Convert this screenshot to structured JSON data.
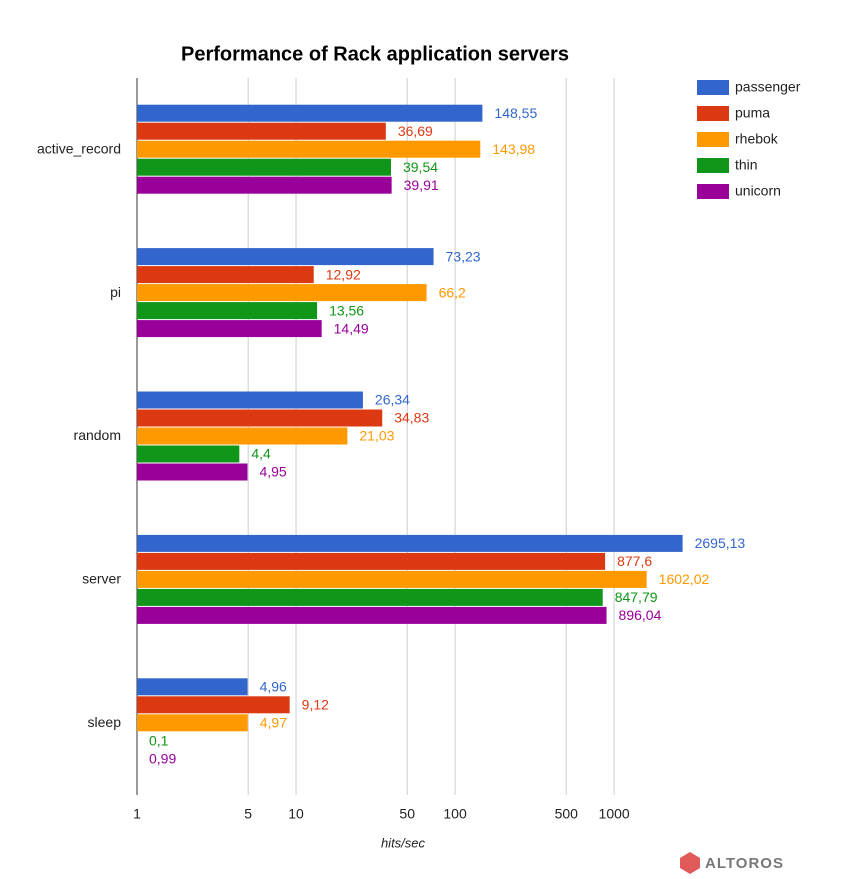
{
  "chart_data": {
    "type": "bar",
    "orientation": "horizontal",
    "title": "Performance of Rack application servers",
    "x_label": "hits/sec",
    "watermark": "ALTOROS",
    "categories": [
      "active_record",
      "pi",
      "random",
      "server",
      "sleep"
    ],
    "xscale": "log",
    "xlim": [
      1,
      3000
    ],
    "xticks": [
      1,
      5,
      10,
      50,
      100,
      500,
      1000
    ],
    "grid": true,
    "legend": "right",
    "series": [
      {
        "name": "passenger",
        "color": "#3366cc",
        "values": [
          148.55,
          73.23,
          26.34,
          2695.13,
          4.96
        ],
        "value_labels": [
          "148,55",
          "73,23",
          "26,34",
          "2695,13",
          "4,96"
        ]
      },
      {
        "name": "puma",
        "color": "#dc3912",
        "values": [
          36.69,
          12.92,
          34.83,
          877.6,
          9.12
        ],
        "value_labels": [
          "36,69",
          "12,92",
          "34,83",
          "877,6",
          "9,12"
        ]
      },
      {
        "name": "rhebok",
        "color": "#ff9900",
        "values": [
          143.98,
          66.2,
          21.03,
          1602.02,
          4.97
        ],
        "value_labels": [
          "143,98",
          "66,2",
          "21,03",
          "1602,02",
          "4,97"
        ]
      },
      {
        "name": "thin",
        "color": "#109618",
        "values": [
          39.54,
          13.56,
          4.4,
          847.79,
          0.1
        ],
        "value_labels": [
          "39,54",
          "13,56",
          "4,4",
          "847,79",
          "0,1"
        ]
      },
      {
        "name": "unicorn",
        "color": "#990099",
        "values": [
          39.91,
          14.49,
          4.95,
          896.04,
          0.99
        ],
        "value_labels": [
          "39,91",
          "14,49",
          "4,95",
          "896,04",
          "0,99"
        ]
      }
    ]
  }
}
